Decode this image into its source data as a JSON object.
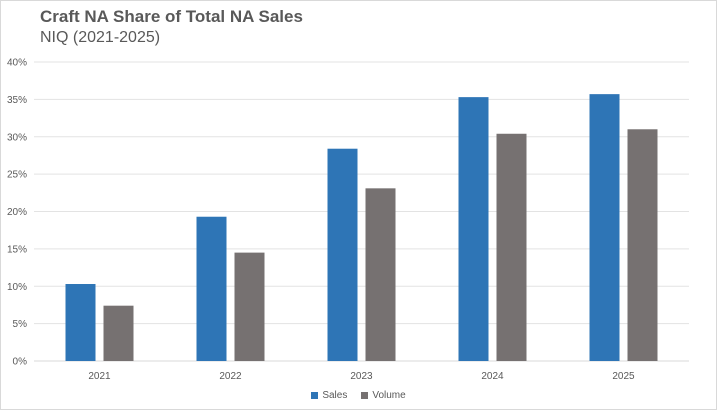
{
  "chart_data": {
    "type": "bar",
    "title": "Craft NA Share of Total NA Sales",
    "subtitle": "NIQ (2021-2025)",
    "categories": [
      "2021",
      "2022",
      "2023",
      "2024",
      "2025"
    ],
    "series": [
      {
        "name": "Sales",
        "color": "#2e75b6",
        "values": [
          10.3,
          19.3,
          28.4,
          35.3,
          35.7
        ]
      },
      {
        "name": "Volume",
        "color": "#767171",
        "values": [
          7.4,
          14.5,
          23.1,
          30.4,
          31.0
        ]
      }
    ],
    "yticks": [
      "0%",
      "5%",
      "10%",
      "15%",
      "20%",
      "25%",
      "30%",
      "35%",
      "40%"
    ],
    "ylim": [
      0,
      40
    ],
    "grid": true,
    "legend_position": "bottom",
    "xlabel": "",
    "ylabel": ""
  }
}
